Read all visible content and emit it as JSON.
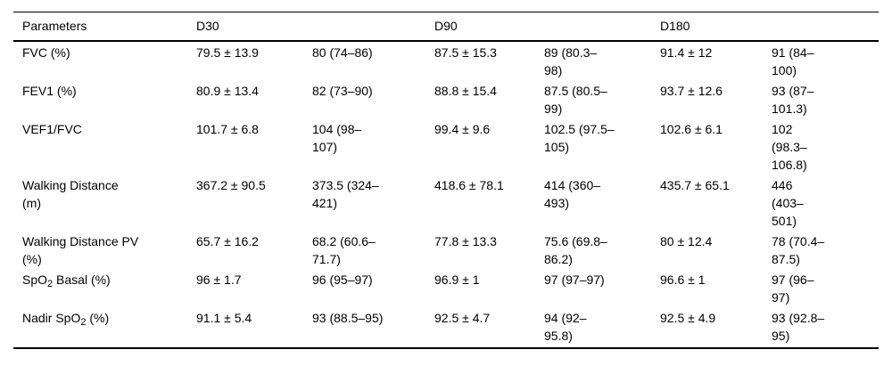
{
  "page": {
    "background_color": "#ffffff",
    "text_color": "#000000",
    "rule_color": "#000000"
  },
  "table": {
    "header": {
      "parameters": "Parameters",
      "d30": "D30",
      "d90": "D90",
      "d180": "D180"
    },
    "rows": [
      {
        "label_pre": "FVC (%)",
        "label_sub": "",
        "label_post": "",
        "cells": [
          "79.5 ± 13.9",
          "80 (74–86)",
          "87.5 ± 15.3",
          "89 (80.3–\n98)",
          "91.4 ± 12",
          "91 (84–\n100)"
        ]
      },
      {
        "label_pre": "FEV1 (%)",
        "label_sub": "",
        "label_post": "",
        "cells": [
          "80.9 ± 13.4",
          "82 (73–90)",
          "88.8 ± 15.4",
          "87.5 (80.5–\n99)",
          "93.7 ± 12.6",
          "93 (87–\n101.3)"
        ]
      },
      {
        "label_pre": "VEF1/FVC",
        "label_sub": "",
        "label_post": "",
        "cells": [
          "101.7 ± 6.8",
          "104 (98–\n107)",
          "99.4 ± 9.6",
          "102.5 (97.5–\n105)",
          "102.6 ± 6.1",
          "102\n(98.3–\n106.8)"
        ]
      },
      {
        "label_pre": "Walking Distance\n(m)",
        "label_sub": "",
        "label_post": "",
        "cells": [
          "367.2 ± 90.5",
          "373.5 (324–\n421)",
          "418.6 ± 78.1",
          "414 (360–\n493)",
          "435.7 ± 65.1",
          "446\n(403–\n501)"
        ]
      },
      {
        "label_pre": "Walking Distance PV\n(%)",
        "label_sub": "",
        "label_post": "",
        "cells": [
          "65.7 ± 16.2",
          "68.2 (60.6–\n71.7)",
          "77.8 ± 13.3",
          "75.6 (69.8–\n86.2)",
          "80 ± 12.4",
          "78 (70.4–\n87.5)"
        ]
      },
      {
        "label_pre": "SpO",
        "label_sub": "2",
        "label_post": " Basal (%)",
        "cells": [
          "96 ± 1.7",
          "96 (95–97)",
          "96.9 ± 1",
          "97 (97–97)",
          "96.6 ± 1",
          "97 (96–\n97)"
        ]
      },
      {
        "label_pre": "Nadir SpO",
        "label_sub": "2",
        "label_post": " (%)",
        "cells": [
          "91.1 ± 5.4",
          "93 (88.5–95)",
          "92.5 ± 4.7",
          "94 (92–\n95.8)",
          "92.5 ± 4.9",
          "93 (92.8–\n95)"
        ]
      }
    ]
  }
}
